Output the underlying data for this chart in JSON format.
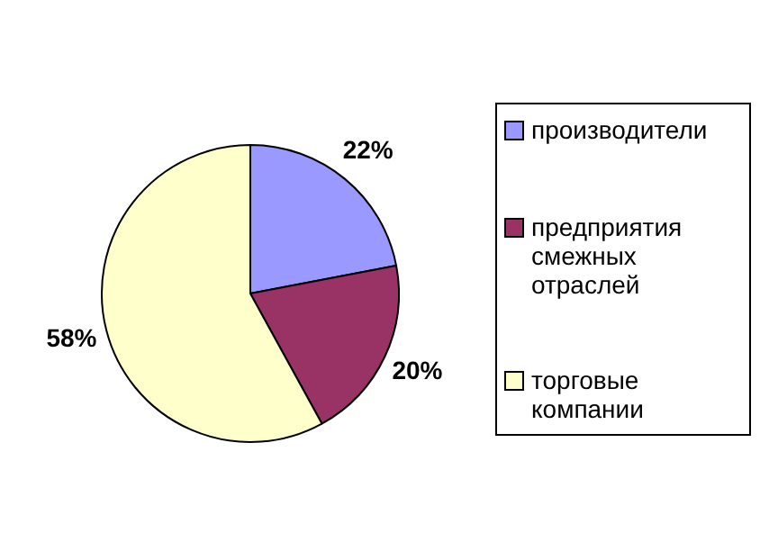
{
  "chart_data": {
    "type": "pie",
    "categories": [
      "производители",
      "предприятия смежных отраслей",
      "торговые компании"
    ],
    "values": [
      22,
      20,
      58
    ],
    "colors": [
      "#9999ff",
      "#993366",
      "#ffffcc"
    ],
    "value_labels": [
      "22%",
      "20%",
      "58%"
    ],
    "legend": "right"
  }
}
